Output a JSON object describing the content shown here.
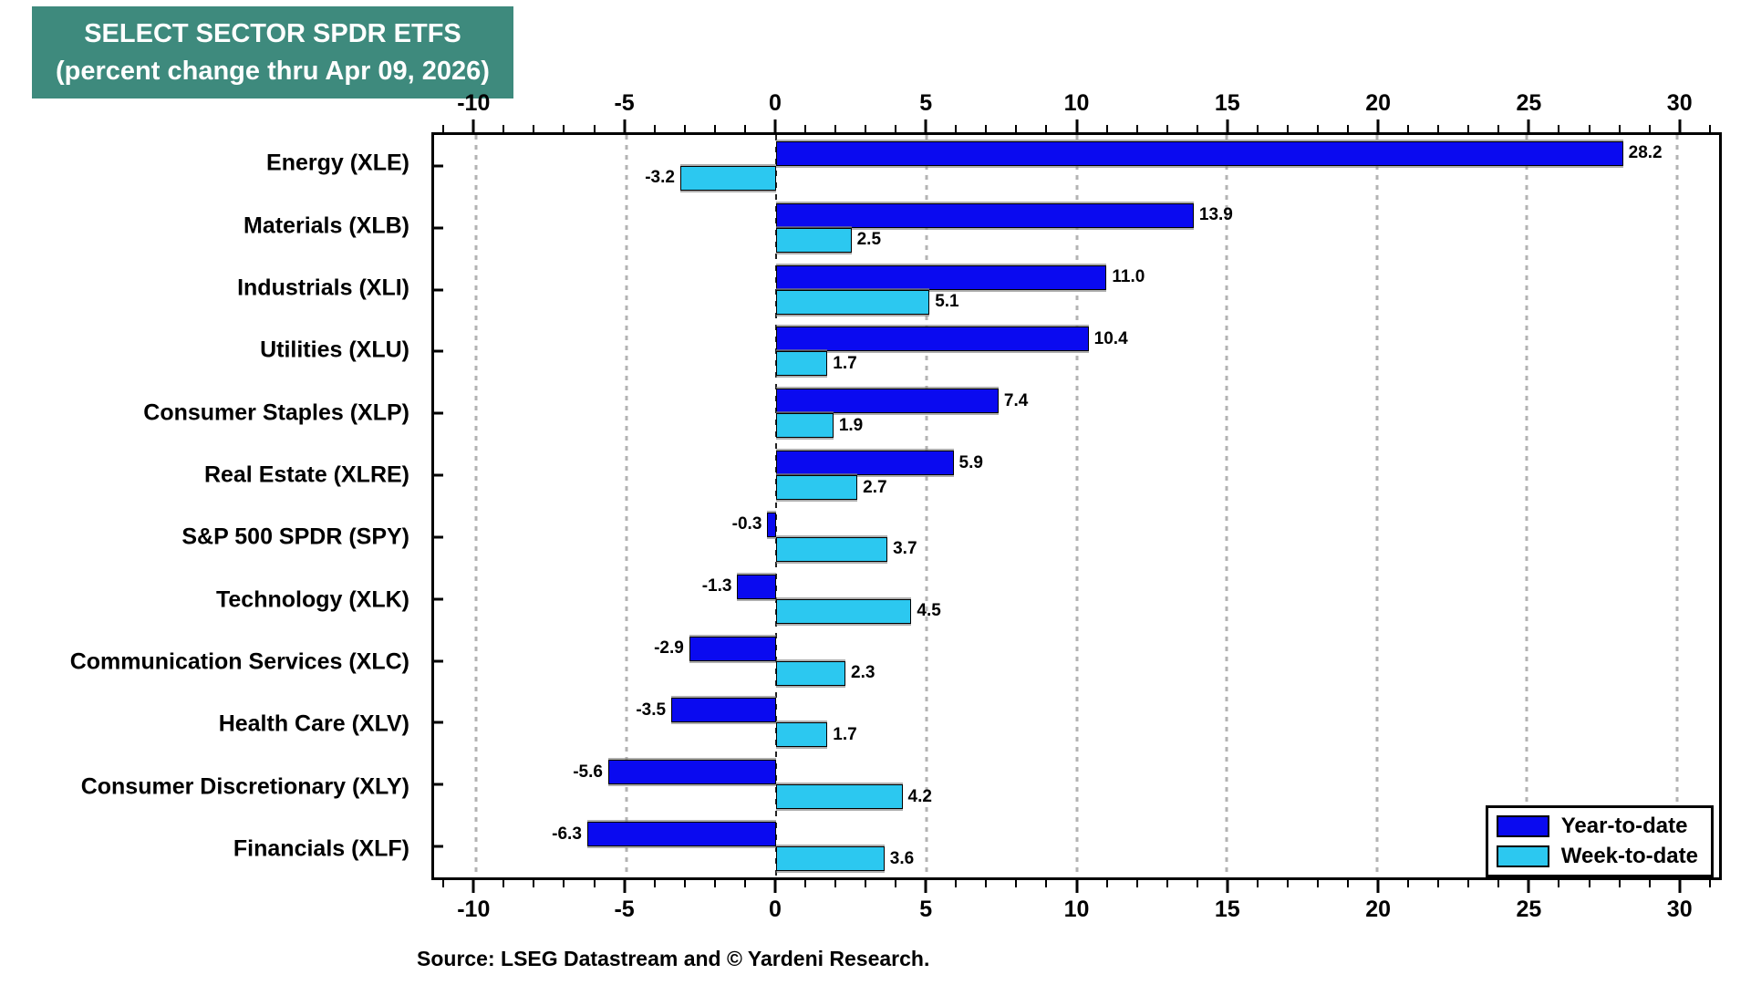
{
  "title": {
    "line1": "SELECT SECTOR SPDR ETFS",
    "line2": "(percent change thru Apr 09, 2026)",
    "bg_color": "#3e8a7d",
    "text_color": "#ffffff"
  },
  "source": "Source: LSEG Datastream and © Yardeni Research.",
  "legend": [
    {
      "label": "Year-to-date",
      "color": "#0a0af0"
    },
    {
      "label": "Week-to-date",
      "color": "#2cc8f0"
    }
  ],
  "chart_data": {
    "type": "bar",
    "orientation": "horizontal",
    "title": "SELECT SECTOR SPDR ETFS (percent change thru Apr 09, 2026)",
    "categories": [
      "Energy (XLE)",
      "Materials (XLB)",
      "Industrials (XLI)",
      "Utilities (XLU)",
      "Consumer Staples (XLP)",
      "Real Estate (XLRE)",
      "S&P 500 SPDR (SPY)",
      "Technology (XLK)",
      "Communication Services (XLC)",
      "Health Care (XLV)",
      "Consumer Discretionary (XLY)",
      "Financials (XLF)"
    ],
    "series": [
      {
        "name": "Year-to-date",
        "color": "#0a0af0",
        "values": [
          28.2,
          13.9,
          11.0,
          10.4,
          7.4,
          5.9,
          -0.3,
          -1.3,
          -2.9,
          -3.5,
          -5.6,
          -6.3
        ]
      },
      {
        "name": "Week-to-date",
        "color": "#2cc8f0",
        "values": [
          -3.2,
          2.5,
          5.1,
          1.7,
          1.9,
          2.7,
          3.7,
          4.5,
          2.3,
          1.7,
          4.2,
          3.6
        ]
      }
    ],
    "xlim": [
      -11.4,
      31.4
    ],
    "x_major_ticks": [
      -10,
      -5,
      0,
      5,
      10,
      15,
      20,
      25,
      30
    ],
    "x_major_tick_labels": [
      "-10",
      "-5",
      "0",
      "5",
      "10",
      "15",
      "20",
      "25",
      "30"
    ],
    "minor_tick_step": 1,
    "grid": "dotted vertical gridlines at major ticks, dashed line at zero",
    "gridline_color": "#b3b3b3",
    "value_label_decimals": 1,
    "legend_position": "bottom-right",
    "axis_labels_position": "top and bottom"
  }
}
